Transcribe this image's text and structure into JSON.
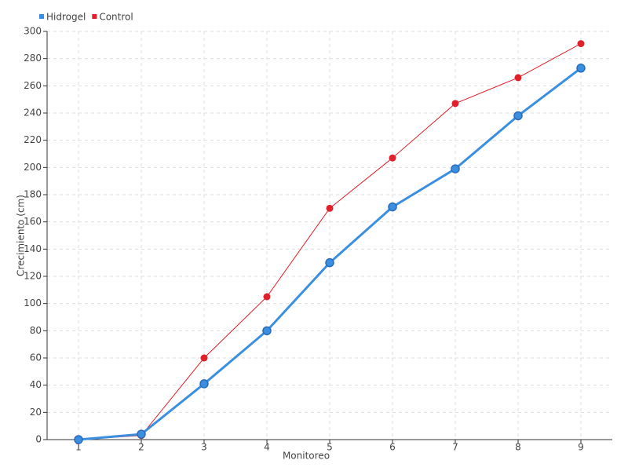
{
  "chart_data": {
    "type": "line",
    "categories": [
      "1",
      "2",
      "3",
      "4",
      "5",
      "6",
      "7",
      "8",
      "9"
    ],
    "x_label": "Monitoreo",
    "y_label": "Crecimiento (cm)",
    "series": [
      {
        "name": "Hidrogel",
        "color": "#3b8fe0",
        "values": [
          0,
          4,
          41,
          80,
          130,
          171,
          199,
          238,
          273
        ]
      },
      {
        "name": "Control",
        "color": "#e0202a",
        "values": [
          0,
          3,
          60,
          105,
          170,
          207,
          247,
          266,
          291
        ]
      }
    ],
    "ylim": [
      0,
      300
    ],
    "yticks": [
      0,
      20,
      40,
      60,
      80,
      100,
      120,
      140,
      160,
      180,
      200,
      220,
      240,
      260,
      280,
      300
    ],
    "grid": true,
    "legend": "top-left"
  }
}
